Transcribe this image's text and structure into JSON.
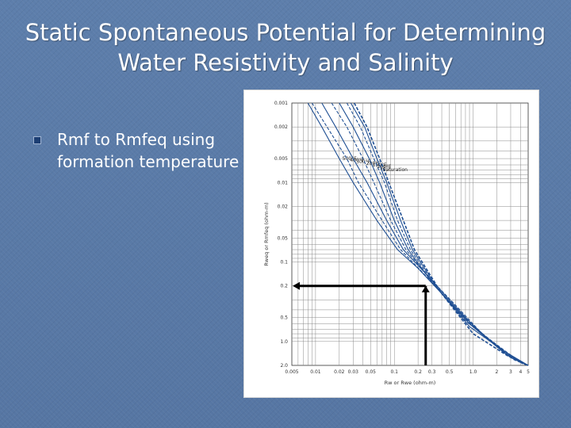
{
  "slide": {
    "title_line1": "Static Spontaneous Potential for Determining",
    "title_line2": "Water Resistivity and Salinity",
    "bullet": "Rmf to Rmfeq using formation temperature"
  },
  "colors": {
    "background": "#5a7aa6",
    "bullet_marker": "#1c3e73",
    "curve": "#1f4f93"
  },
  "chart_data": {
    "type": "line",
    "title": "",
    "xlabel": "Rw or Rwe (ohm-m)",
    "ylabel": "Rweq or Rmfeq (ohm-m)",
    "x_tick_labels": [
      "0.005",
      "0.01",
      "0.02",
      "0.03",
      "0.05",
      "0.1",
      "0.2",
      "0.3",
      "0.5",
      "1.0",
      "2",
      "3",
      "4",
      "5"
    ],
    "y_tick_labels": [
      "0.001",
      "0.002",
      "0.005",
      "0.01",
      "0.02",
      "0.05",
      "0.1",
      "0.2",
      "0.5",
      "1.0",
      "2.0"
    ],
    "xlim": [
      0.005,
      5
    ],
    "ylim": [
      0.001,
      2.0
    ],
    "log_scale": true,
    "grid": true,
    "series": [
      {
        "name": "500°F",
        "points": [
          [
            0.008,
            0.001
          ],
          [
            0.012,
            0.002
          ],
          [
            0.02,
            0.005
          ],
          [
            0.03,
            0.01
          ],
          [
            0.06,
            0.03
          ],
          [
            0.11,
            0.07
          ],
          [
            0.2,
            0.12
          ],
          [
            0.4,
            0.25
          ],
          [
            0.9,
            0.6
          ],
          [
            2.5,
            1.4
          ],
          [
            5,
            2.0
          ]
        ]
      },
      {
        "name": "400°F",
        "points": [
          [
            0.009,
            0.001
          ],
          [
            0.014,
            0.002
          ],
          [
            0.025,
            0.005
          ],
          [
            0.035,
            0.01
          ],
          [
            0.07,
            0.03
          ],
          [
            0.12,
            0.07
          ],
          [
            0.22,
            0.13
          ],
          [
            0.45,
            0.28
          ],
          [
            1.0,
            0.65
          ],
          [
            2.8,
            1.5
          ],
          [
            5,
            2.0
          ]
        ]
      },
      {
        "name": "300°F",
        "points": [
          [
            0.012,
            0.001
          ],
          [
            0.018,
            0.002
          ],
          [
            0.03,
            0.005
          ],
          [
            0.045,
            0.01
          ],
          [
            0.08,
            0.03
          ],
          [
            0.13,
            0.07
          ],
          [
            0.25,
            0.14
          ],
          [
            0.5,
            0.3
          ],
          [
            1.1,
            0.7
          ],
          [
            3.0,
            1.6
          ],
          [
            5,
            2.0
          ]
        ]
      },
      {
        "name": "200°F",
        "points": [
          [
            0.016,
            0.001
          ],
          [
            0.025,
            0.002
          ],
          [
            0.04,
            0.005
          ],
          [
            0.055,
            0.01
          ],
          [
            0.09,
            0.03
          ],
          [
            0.14,
            0.07
          ],
          [
            0.28,
            0.16
          ],
          [
            0.6,
            0.35
          ],
          [
            1.3,
            0.8
          ],
          [
            3.3,
            1.7
          ],
          [
            5,
            2.0
          ]
        ]
      },
      {
        "name": "150°F",
        "points": [
          [
            0.02,
            0.001
          ],
          [
            0.03,
            0.002
          ],
          [
            0.048,
            0.005
          ],
          [
            0.065,
            0.01
          ],
          [
            0.1,
            0.03
          ],
          [
            0.15,
            0.07
          ],
          [
            0.3,
            0.18
          ],
          [
            0.7,
            0.45
          ],
          [
            1.6,
            0.95
          ],
          [
            3.8,
            1.8
          ],
          [
            5,
            2.0
          ]
        ]
      },
      {
        "name": "100°F",
        "points": [
          [
            0.025,
            0.001
          ],
          [
            0.037,
            0.002
          ],
          [
            0.055,
            0.005
          ],
          [
            0.075,
            0.01
          ],
          [
            0.11,
            0.03
          ],
          [
            0.16,
            0.07
          ],
          [
            0.33,
            0.2
          ],
          [
            0.8,
            0.55
          ],
          [
            2.0,
            1.1
          ],
          [
            4.2,
            1.9
          ],
          [
            5,
            2.0
          ]
        ]
      },
      {
        "name": "75°F",
        "points": [
          [
            0.028,
            0.001
          ],
          [
            0.042,
            0.002
          ],
          [
            0.06,
            0.005
          ],
          [
            0.08,
            0.01
          ],
          [
            0.12,
            0.03
          ],
          [
            0.17,
            0.07
          ],
          [
            0.36,
            0.22
          ],
          [
            0.9,
            0.65
          ],
          [
            2.4,
            1.3
          ],
          [
            5,
            2.0
          ]
        ]
      },
      {
        "name": "Saturation",
        "points": [
          [
            0.031,
            0.001
          ],
          [
            0.045,
            0.002
          ],
          [
            0.065,
            0.005
          ],
          [
            0.085,
            0.01
          ],
          [
            0.13,
            0.03
          ],
          [
            0.18,
            0.07
          ],
          [
            0.4,
            0.25
          ],
          [
            1.0,
            0.8
          ],
          [
            2.7,
            1.5
          ],
          [
            5,
            2.0
          ]
        ]
      }
    ],
    "annotation_arrow": {
      "from_x": 0.25,
      "to_y": 0.2
    }
  }
}
